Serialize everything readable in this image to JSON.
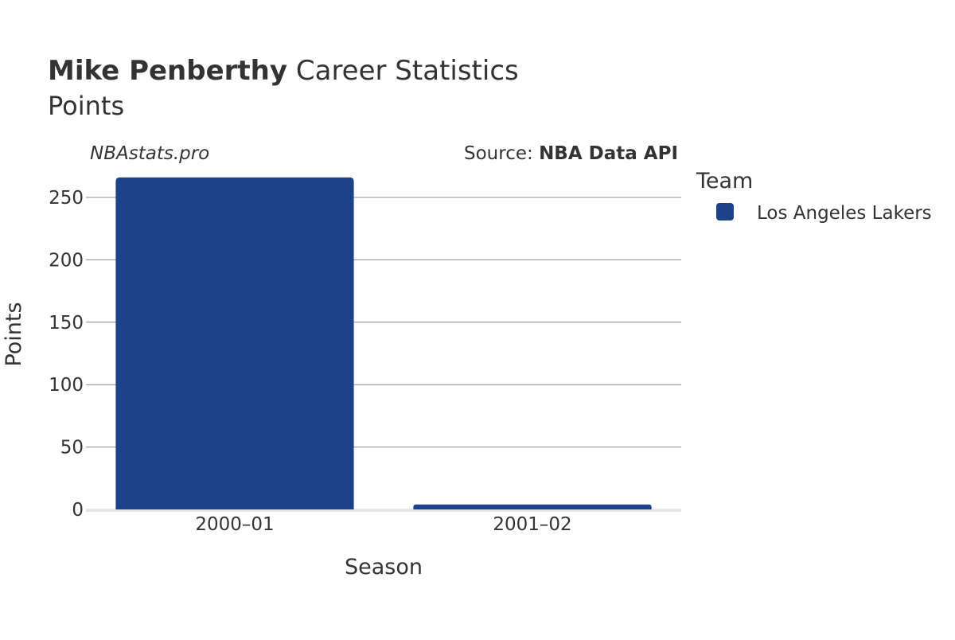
{
  "header": {
    "player_name": "Mike Penberthy",
    "title_suffix": " Career Statistics",
    "subtitle": "Points"
  },
  "branding": {
    "watermark": "NBAstats.pro",
    "source_prefix": "Source: ",
    "source_name": "NBA Data API"
  },
  "legend": {
    "title": "Team",
    "items": [
      {
        "label": "Los Angeles Lakers",
        "color": "#1d428a"
      }
    ]
  },
  "chart_data": {
    "type": "bar",
    "title": "Mike Penberthy Career Statistics",
    "subtitle": "Points",
    "xlabel": "Season",
    "ylabel": "Points",
    "categories": [
      "2000–01",
      "2001–02"
    ],
    "series": [
      {
        "name": "Los Angeles Lakers",
        "color": "#1d428a",
        "values": [
          266,
          4
        ]
      }
    ],
    "ylim": [
      0,
      270
    ],
    "yticks": [
      0,
      50,
      100,
      150,
      200,
      250
    ],
    "grid": true,
    "legend_position": "right"
  }
}
